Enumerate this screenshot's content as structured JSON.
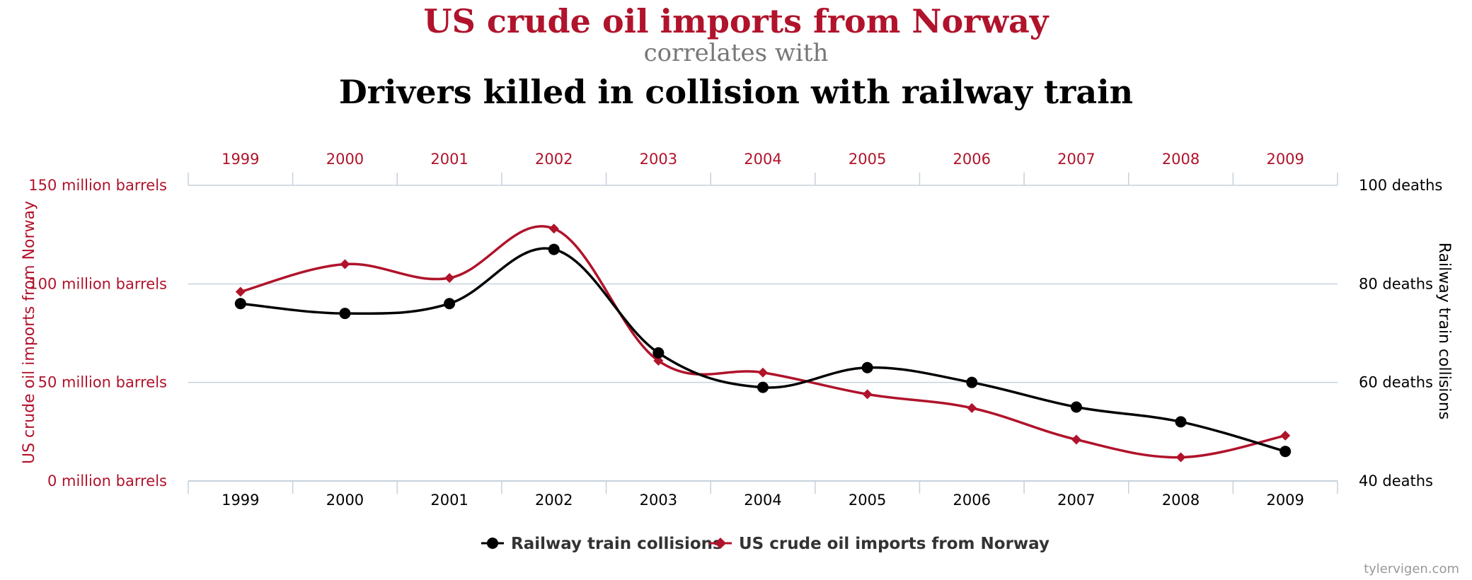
{
  "chart_data": {
    "type": "line",
    "title": "US crude oil imports from Norway",
    "subtitle": "correlates with",
    "title2": "Drivers killed in collision with railway train",
    "categories": [
      "1999",
      "2000",
      "2001",
      "2002",
      "2003",
      "2004",
      "2005",
      "2006",
      "2007",
      "2008",
      "2009"
    ],
    "y_left": {
      "label": "US crude oil imports from Norway",
      "ticks": [
        "0 million barrels",
        "50 million barrels",
        "100 million barrels",
        "150 million barrels"
      ],
      "range": [
        0,
        150
      ]
    },
    "y_right": {
      "label": "Railway train collisions",
      "ticks": [
        "40 deaths",
        "60 deaths",
        "80 deaths",
        "100 deaths"
      ],
      "range": [
        40,
        100
      ]
    },
    "series": [
      {
        "name": "Railway train collisions",
        "axis": "right",
        "color": "#000000",
        "marker": "circle",
        "values": [
          76,
          74,
          76,
          87,
          66,
          59,
          63,
          60,
          55,
          52,
          46
        ]
      },
      {
        "name": "US crude oil imports from Norway",
        "axis": "left",
        "color": "#b0132b",
        "marker": "diamond",
        "values": [
          96,
          110,
          103,
          128,
          61,
          55,
          44,
          37,
          21,
          12,
          23
        ]
      }
    ],
    "legend_position": "bottom-center",
    "grid": true
  },
  "colors": {
    "accent": "#b0132b",
    "black": "#000000",
    "grey_text": "#777777",
    "axis": "#c6d1dc",
    "credit": "#999999"
  },
  "credit": "tylervigen.com"
}
